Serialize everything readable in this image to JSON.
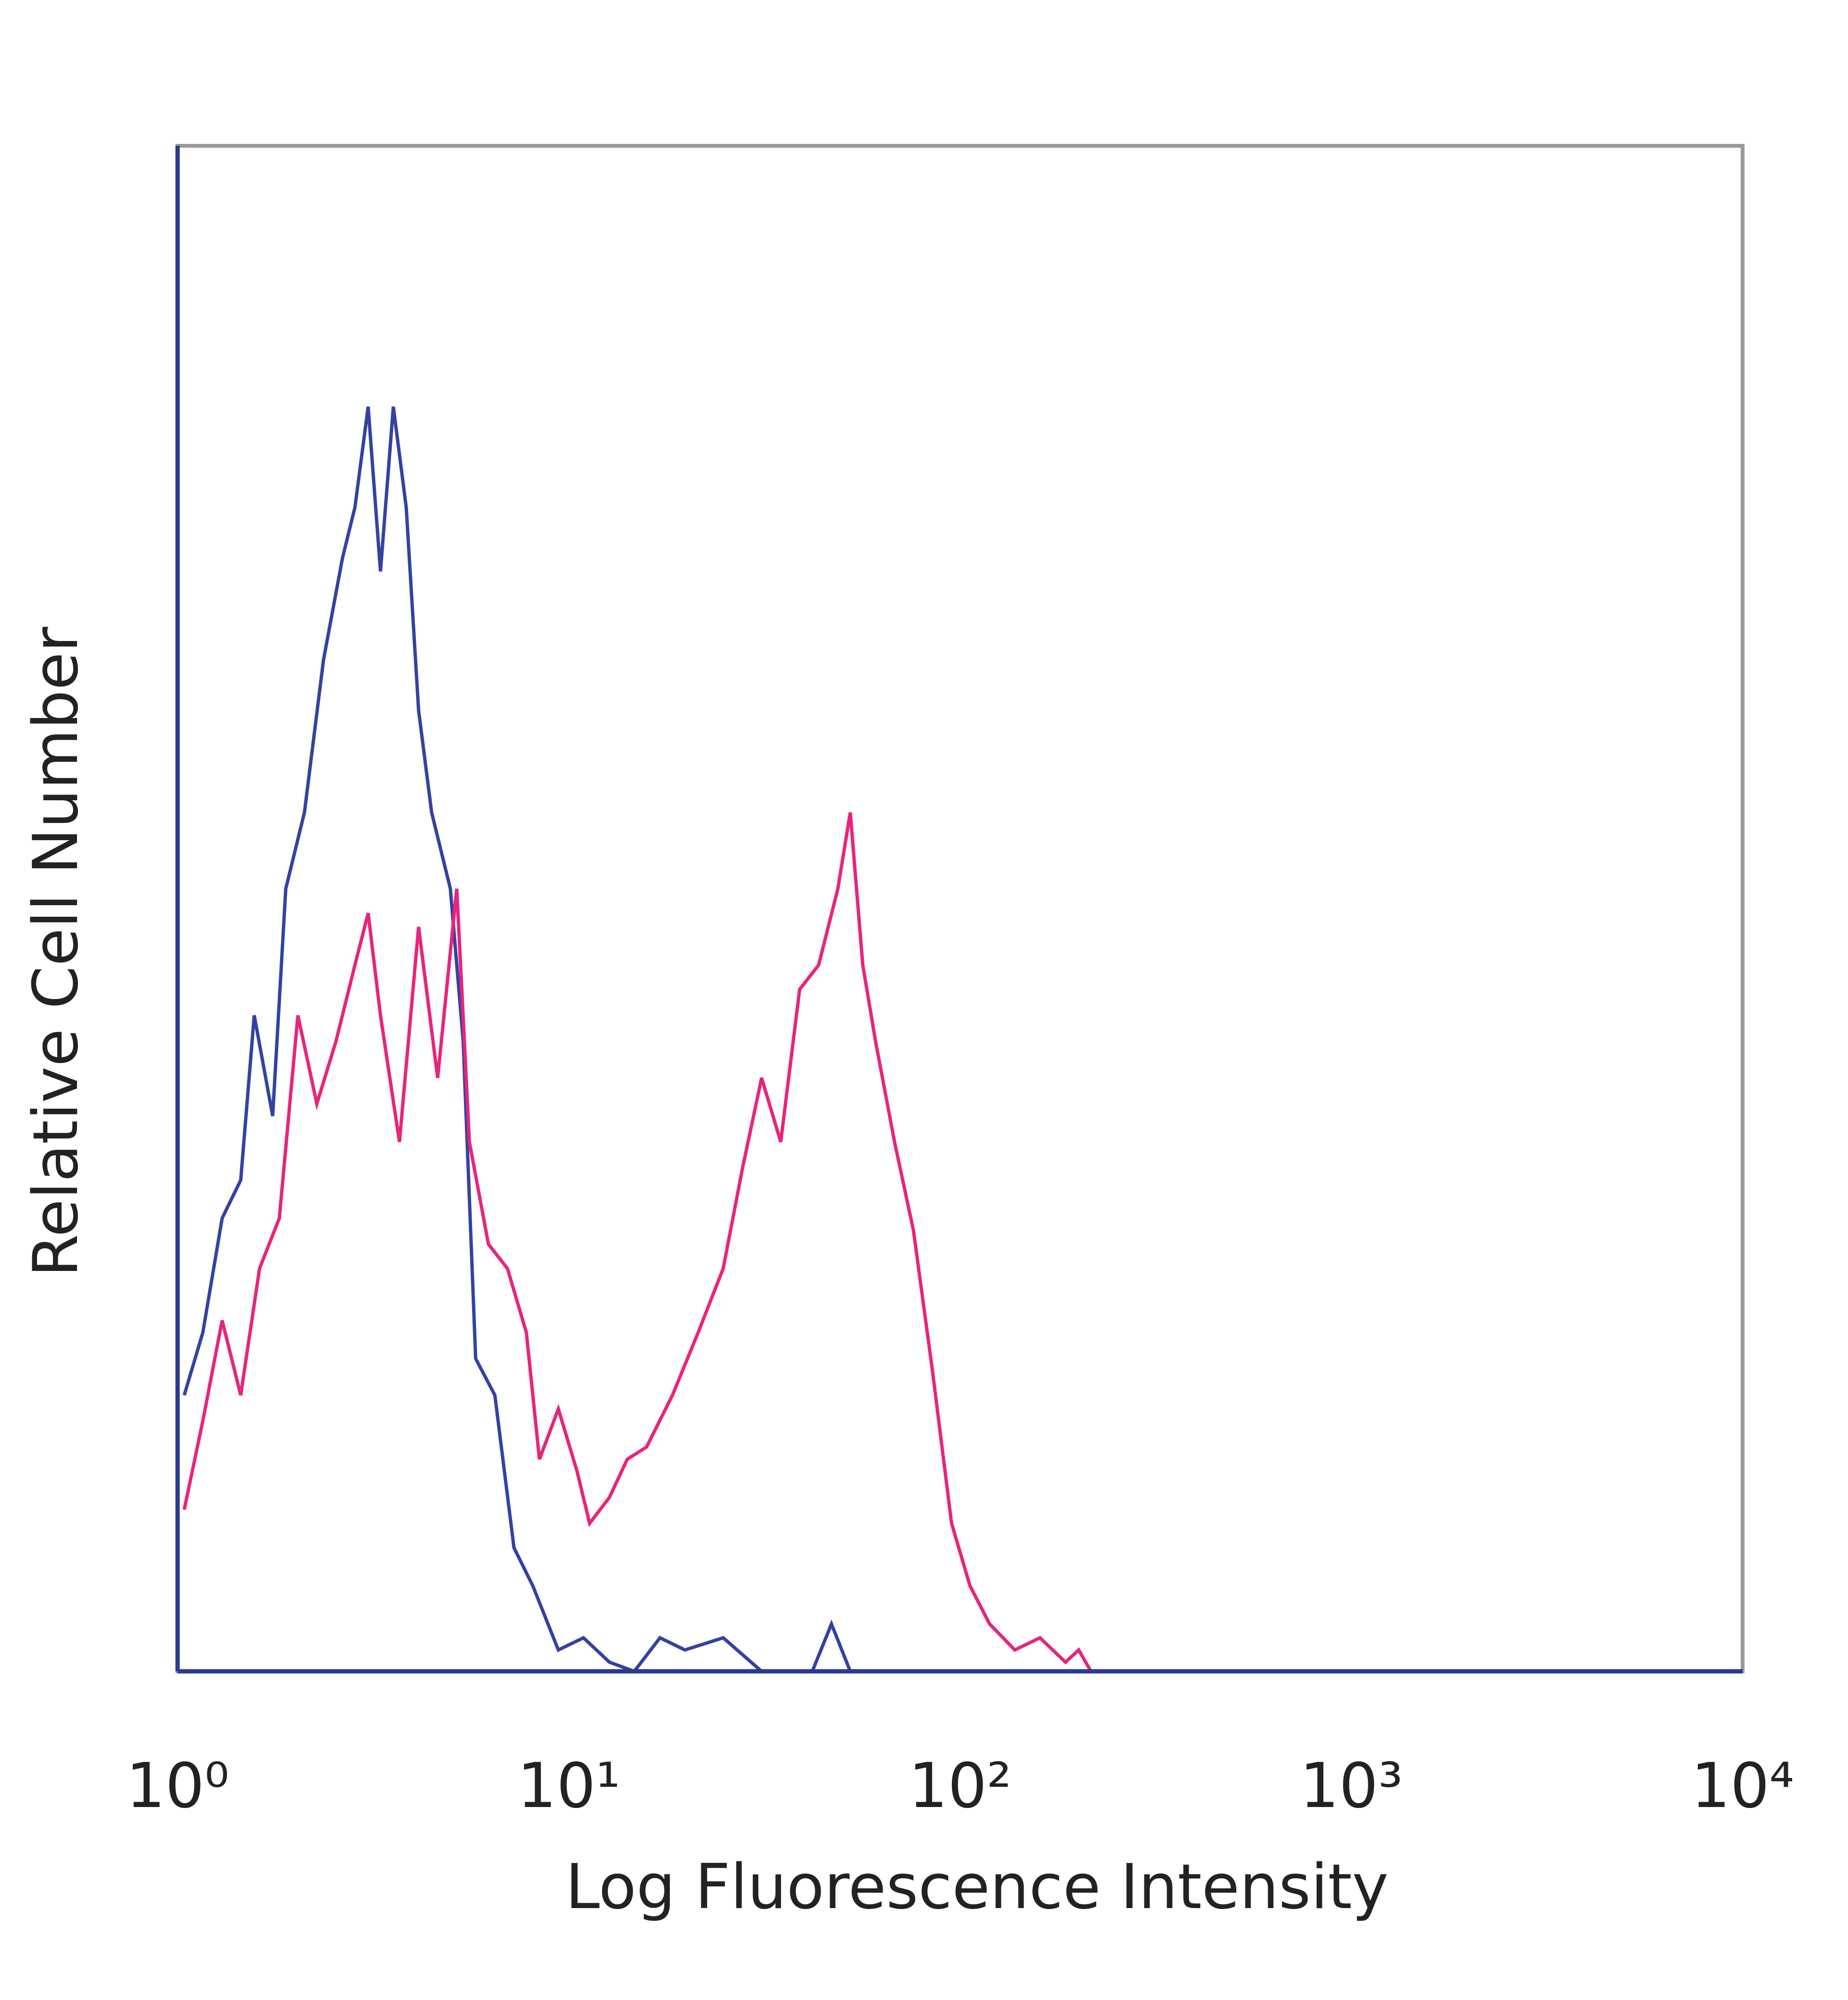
{
  "chart_data": {
    "type": "line",
    "xlabel": "Log Fluorescence Intensity",
    "ylabel": "Relative Cell Number",
    "xscale": "log",
    "xlim": [
      1,
      10000
    ],
    "xticks": [
      {
        "value": 1,
        "label": "10⁰"
      },
      {
        "value": 10,
        "label": "10¹"
      },
      {
        "value": 100,
        "label": "10²"
      },
      {
        "value": 1000,
        "label": "10³"
      },
      {
        "value": 10000,
        "label": "10⁴"
      }
    ],
    "ylim": [
      0,
      100
    ],
    "grid": false,
    "series": [
      {
        "color": "#3342a2",
        "x": [
          1.04,
          1.16,
          1.3,
          1.45,
          1.57,
          1.75,
          1.89,
          2.11,
          2.36,
          2.64,
          2.84,
          3.07,
          3.3,
          3.56,
          3.84,
          4.13,
          4.46,
          4.98,
          5.37,
          5.78,
          6.47,
          7.24,
          8.09,
          9.4,
          10.9,
          12.7,
          14.7,
          17.1,
          19.8,
          24.8,
          31.1,
          41.9,
          46.9,
          52.4,
          10000
        ],
        "values": [
          18.1,
          22.2,
          29.7,
          32.2,
          43.0,
          36.4,
          51.3,
          56.3,
          66.3,
          73.0,
          76.3,
          82.9,
          72.1,
          82.9,
          76.3,
          63.0,
          56.3,
          51.3,
          41.3,
          20.5,
          18.1,
          8.1,
          5.6,
          1.4,
          2.2,
          0.6,
          0,
          2.2,
          1.4,
          2.2,
          0,
          0,
          3.1,
          0,
          0
        ]
      },
      {
        "color": "#e8247c",
        "x": [
          1.04,
          1.16,
          1.3,
          1.45,
          1.62,
          1.82,
          2.03,
          2.27,
          2.54,
          2.84,
          3.07,
          3.3,
          3.69,
          4.13,
          4.62,
          5.17,
          5.57,
          6.23,
          6.97,
          7.79,
          8.41,
          9.4,
          10.5,
          11.3,
          12.7,
          14.1,
          15.8,
          18.4,
          21.4,
          24.8,
          27.8,
          31.1,
          34.8,
          38.9,
          43.5,
          48.7,
          52.4,
          56.4,
          60.8,
          68.0,
          76.0,
          85.0,
          95.1,
          106,
          119,
          138,
          160,
          186,
          201,
          216
        ],
        "values": [
          10.6,
          16.4,
          23.0,
          18.1,
          26.4,
          29.7,
          43.0,
          37.2,
          41.3,
          46.3,
          49.7,
          43.0,
          34.7,
          48.8,
          38.9,
          51.3,
          34.7,
          28.0,
          26.4,
          22.2,
          13.9,
          17.2,
          13.1,
          9.7,
          11.4,
          13.9,
          14.7,
          18.1,
          22.2,
          26.4,
          33.0,
          38.9,
          34.7,
          44.7,
          46.3,
          51.3,
          56.3,
          46.3,
          41.3,
          34.7,
          28.9,
          19.7,
          9.7,
          5.6,
          3.1,
          1.4,
          2.2,
          0.6,
          1.4,
          0
        ]
      }
    ]
  }
}
